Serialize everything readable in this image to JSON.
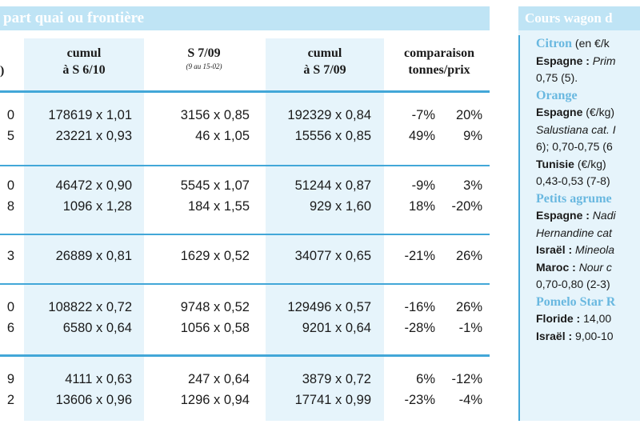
{
  "header": {
    "title": "part quai ou frontière"
  },
  "stub_header": ")",
  "columns": [
    {
      "line1": "cumul",
      "line2": "à S 6/10",
      "sub": ""
    },
    {
      "line1": "S 7/09",
      "line2": "",
      "sub": "(9 au 15-02)"
    },
    {
      "line1": "cumul",
      "line2": "à S 7/09",
      "sub": ""
    },
    {
      "line1": "comparaison",
      "line2": "tonnes/prix",
      "sub": ""
    }
  ],
  "rows": [
    [
      "0",
      "178619 x 1,01",
      "3156 x 0,85",
      "192329 x 0,84",
      "-7%",
      "20%"
    ],
    [
      "5",
      "23221 x 0,93",
      "46 x 1,05",
      "15556 x 0,85",
      "49%",
      "9%"
    ],
    [
      "0",
      "46472 x 0,90",
      "5545 x 1,07",
      "51244 x 0,87",
      "-9%",
      "3%"
    ],
    [
      "8",
      "1096 x 1,28",
      "184 x 1,55",
      "929 x 1,60",
      "18%",
      "-20%"
    ],
    [
      "3",
      "26889 x 0,81",
      "1629 x 0,52",
      "34077 x 0,65",
      "-21%",
      "26%"
    ],
    [
      "0",
      "108822 x 0,72",
      "9748 x 0,52",
      "129496 x 0,57",
      "-16%",
      "26%"
    ],
    [
      "6",
      "6580 x 0,64",
      "1056 x 0,58",
      "9201 x 0,64",
      "-28%",
      "-1%"
    ],
    [
      "9",
      "4111 x 0,63",
      "247 x 0,64",
      "3879 x 0,72",
      "6%",
      "-12%"
    ],
    [
      "2",
      "13606 x 0,96",
      "1296 x 0,94",
      "17741 x 0,99",
      "-23%",
      "-4%"
    ]
  ],
  "sidebar": {
    "title": "Cours wagon d",
    "lines": [
      {
        "parts": [
          {
            "t": "Citron",
            "s": "sec"
          },
          {
            "t": " (en €/k",
            "s": ""
          }
        ]
      },
      {
        "parts": [
          {
            "t": "Espagne : ",
            "s": "b"
          },
          {
            "t": "Prim",
            "s": "i"
          }
        ]
      },
      {
        "parts": [
          {
            "t": "0,75 (5).",
            "s": ""
          }
        ]
      },
      {
        "parts": [
          {
            "t": "Orange",
            "s": "sec"
          }
        ]
      },
      {
        "parts": [
          {
            "t": "Espagne",
            "s": "b"
          },
          {
            "t": " (€/kg)",
            "s": ""
          }
        ]
      },
      {
        "parts": [
          {
            "t": "Salustiana cat. I",
            "s": "i"
          }
        ]
      },
      {
        "parts": [
          {
            "t": "6); 0,70-0,75 (6",
            "s": ""
          }
        ]
      },
      {
        "parts": [
          {
            "t": "Tunisie",
            "s": "b"
          },
          {
            "t": " (€/kg)",
            "s": ""
          }
        ]
      },
      {
        "parts": [
          {
            "t": "0,43-0,53 (7-8)",
            "s": ""
          }
        ]
      },
      {
        "parts": [
          {
            "t": "Petits agrume",
            "s": "sec"
          }
        ]
      },
      {
        "parts": [
          {
            "t": "Espagne : ",
            "s": "b"
          },
          {
            "t": "Nadi",
            "s": "i"
          }
        ]
      },
      {
        "parts": [
          {
            "t": "Hernandine cat",
            "s": "i"
          }
        ]
      },
      {
        "parts": [
          {
            "t": "Israël : ",
            "s": "b"
          },
          {
            "t": "Mineola",
            "s": "i"
          }
        ]
      },
      {
        "parts": [
          {
            "t": "Maroc : ",
            "s": "b"
          },
          {
            "t": "Nour c",
            "s": "i"
          }
        ]
      },
      {
        "parts": [
          {
            "t": "0,70-0,80 (2-3)",
            "s": ""
          }
        ]
      },
      {
        "parts": [
          {
            "t": "Pomelo Star R",
            "s": "sec"
          }
        ]
      },
      {
        "parts": [
          {
            "t": "Floride : ",
            "s": "b"
          },
          {
            "t": "14,00",
            "s": ""
          }
        ]
      },
      {
        "parts": [
          {
            "t": "Israël : ",
            "s": "b"
          },
          {
            "t": "9,00-10",
            "s": ""
          }
        ]
      }
    ]
  }
}
